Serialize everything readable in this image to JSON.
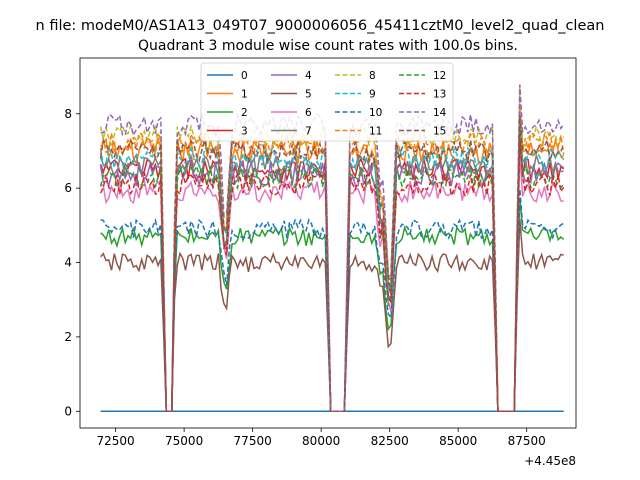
{
  "window_title": "n file: modeM0/AS1A13_049T07_9000006056_45411cztM0_level2_quad_clean",
  "chart_data": {
    "type": "line",
    "title": "Quadrant 3 module wise count rates with 100.0s bins.",
    "xlabel": "",
    "ylabel": "",
    "x_offset_label": "+4.45e8",
    "xlim": [
      71200,
      89300
    ],
    "ylim": [
      -0.45,
      9.5
    ],
    "x_ticks": [
      72500,
      75000,
      77500,
      80000,
      82500,
      85000,
      87500
    ],
    "x_tick_labels": [
      "72500",
      "75000",
      "77500",
      "80000",
      "82500",
      "85000",
      "87500"
    ],
    "y_ticks": [
      0,
      2,
      4,
      6,
      8
    ],
    "y_tick_labels": [
      "0",
      "2",
      "4",
      "6",
      "8"
    ],
    "x_range": [
      71950,
      88850
    ],
    "gaps": [
      [
        74300,
        74600
      ],
      [
        80300,
        80900
      ],
      [
        86400,
        87100
      ]
    ],
    "dips": [
      [
        76500,
        -2.5
      ],
      [
        82500,
        -4.5
      ],
      [
        82200,
        -1.8
      ]
    ],
    "legend_placement": "upper-center",
    "legend_columns": 4,
    "series": [
      {
        "name": "0",
        "color": "#1f77b4",
        "dash": "solid",
        "level": 0.0,
        "noise": 0.0
      },
      {
        "name": "1",
        "color": "#ff7f0e",
        "dash": "solid",
        "level": 7.0,
        "noise": 0.35
      },
      {
        "name": "2",
        "color": "#2ca02c",
        "dash": "solid",
        "level": 4.7,
        "noise": 0.25
      },
      {
        "name": "3",
        "color": "#d62728",
        "dash": "solid",
        "level": 6.5,
        "noise": 0.3
      },
      {
        "name": "4",
        "color": "#9467bd",
        "dash": "solid",
        "level": 6.4,
        "noise": 0.35
      },
      {
        "name": "5",
        "color": "#8c564b",
        "dash": "solid",
        "level": 4.0,
        "noise": 0.25
      },
      {
        "name": "6",
        "color": "#e377c2",
        "dash": "solid",
        "level": 5.9,
        "noise": 0.3
      },
      {
        "name": "7",
        "color": "#7f7f7f",
        "dash": "solid",
        "level": 6.6,
        "noise": 0.3
      },
      {
        "name": "8",
        "color": "#bcbd22",
        "dash": "dashed",
        "level": 7.4,
        "noise": 0.3
      },
      {
        "name": "9",
        "color": "#17becf",
        "dash": "dashed",
        "level": 6.8,
        "noise": 0.3
      },
      {
        "name": "10",
        "color": "#1f77b4",
        "dash": "dashed",
        "level": 4.9,
        "noise": 0.25
      },
      {
        "name": "11",
        "color": "#ff7f0e",
        "dash": "dashed",
        "level": 7.2,
        "noise": 0.3
      },
      {
        "name": "12",
        "color": "#2ca02c",
        "dash": "dashed",
        "level": 6.3,
        "noise": 0.3
      },
      {
        "name": "13",
        "color": "#d62728",
        "dash": "dashed",
        "level": 6.1,
        "noise": 0.3
      },
      {
        "name": "14",
        "color": "#9467bd",
        "dash": "dashed",
        "level": 7.7,
        "noise": 0.3
      },
      {
        "name": "15",
        "color": "#8c564b",
        "dash": "dashed",
        "level": 7.0,
        "noise": 0.3
      }
    ]
  }
}
